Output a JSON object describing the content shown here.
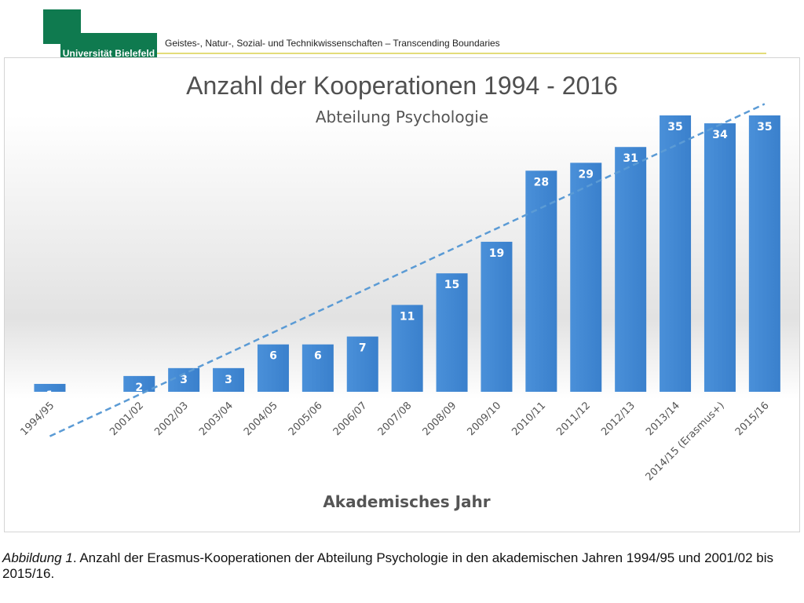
{
  "header": {
    "logo_text": "Universität Bielefeld",
    "tagline": "Geistes-, Natur-, Sozial- und Technikwissenschaften – Transcending Boundaries",
    "brand_color": "#0f7a4f",
    "rule_color": "#e3dc7a"
  },
  "chart_data": {
    "type": "bar",
    "title": "Anzahl der Kooperationen 1994 - 2016",
    "subtitle": "Abteilung Psychologie",
    "xlabel": "Akademisches Jahr",
    "ylabel": "",
    "categories": [
      "1994/95",
      "",
      "2001/02",
      "2002/03",
      "2003/04",
      "2004/05",
      "2005/06",
      "2006/07",
      "2007/08",
      "2008/09",
      "2009/10",
      "2010/11",
      "2011/12",
      "2012/13",
      "2013/14",
      "2014/15 (Erasmus+)",
      "2015/16"
    ],
    "values": [
      1,
      null,
      2,
      3,
      3,
      6,
      6,
      7,
      11,
      15,
      19,
      28,
      29,
      31,
      35,
      34,
      35
    ],
    "ylim": [
      0,
      35
    ],
    "data_labels": true,
    "trendline": "linear",
    "grid": false,
    "legend": "none",
    "bar_color": "#3d86d1",
    "trend_color": "#5b9bd5"
  },
  "caption": {
    "label": "Abbildung 1",
    "text": ". Anzahl der Erasmus-Kooperationen der Abteilung Psychologie in den akademischen Jahren 1994/95 und 2001/02 bis 2015/16."
  }
}
